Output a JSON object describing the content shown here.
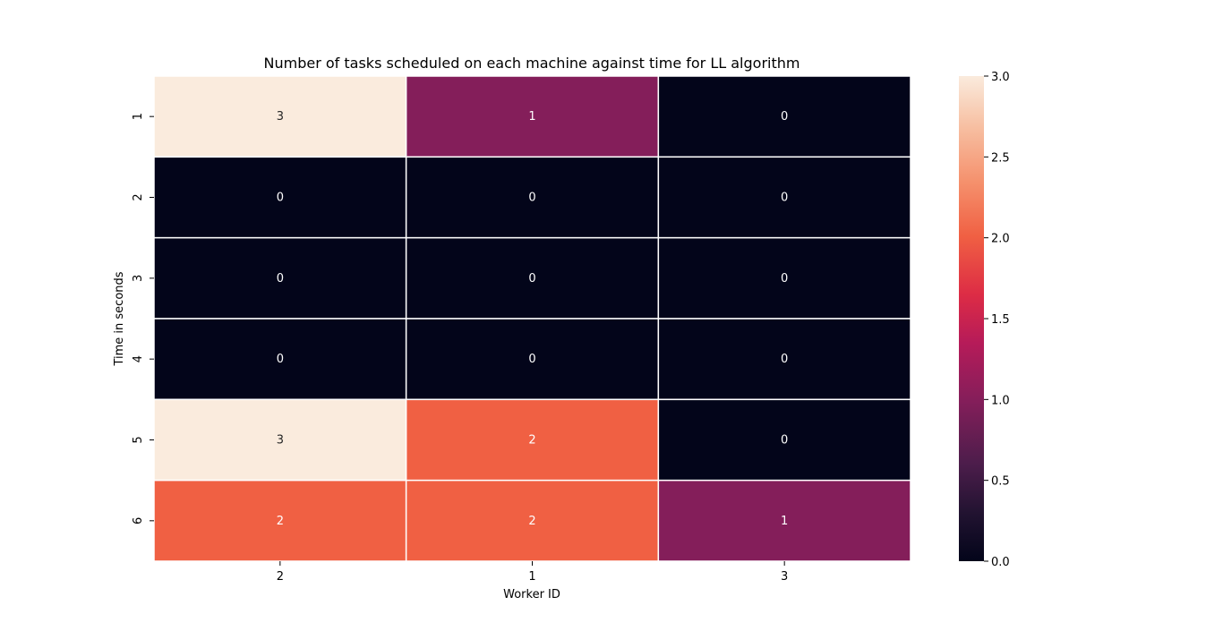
{
  "chart_data": {
    "type": "heatmap",
    "title": "Number of tasks scheduled on each machine against time for LL algorithm",
    "xlabel": "Worker ID",
    "ylabel": "Time in seconds",
    "x_categories": [
      "2",
      "1",
      "3"
    ],
    "y_categories": [
      "1",
      "2",
      "3",
      "4",
      "5",
      "6"
    ],
    "values": [
      [
        3,
        1,
        0
      ],
      [
        0,
        0,
        0
      ],
      [
        0,
        0,
        0
      ],
      [
        0,
        0,
        0
      ],
      [
        3,
        2,
        0
      ],
      [
        2,
        2,
        1
      ]
    ],
    "colorbar": {
      "range": [
        0.0,
        3.0
      ],
      "ticks": [
        "0.0",
        "0.5",
        "1.0",
        "1.5",
        "2.0",
        "2.5",
        "3.0"
      ],
      "colormap": "rocket",
      "colors": {
        "0": "#03051a",
        "1": "#841e5a",
        "2": "#f06043",
        "3": "#faebdd"
      }
    },
    "grid": false
  }
}
